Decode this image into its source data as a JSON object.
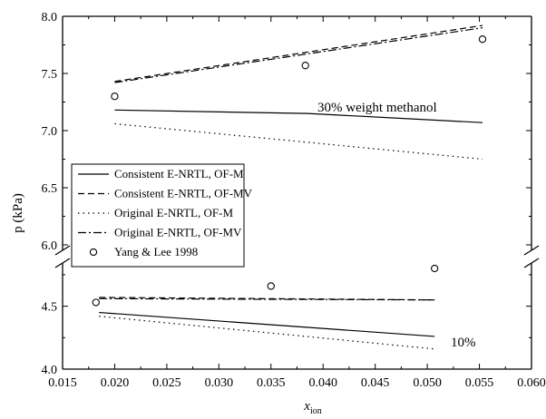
{
  "chart_data": {
    "type": "line",
    "xlabel": "x",
    "xlabel_sub": "ion",
    "ylabel": "p (kPa)",
    "xlim": [
      0.015,
      0.06
    ],
    "x_ticks": [
      "0.015",
      "0.020",
      "0.025",
      "0.030",
      "0.035",
      "0.040",
      "0.045",
      "0.050",
      "0.055",
      "0.060"
    ],
    "y_axis_break": true,
    "upper_panel": {
      "ylim": [
        6.0,
        8.0
      ],
      "y_ticks": [
        "6.0",
        "6.5",
        "7.0",
        "7.5",
        "8.0"
      ]
    },
    "lower_panel": {
      "ylim": [
        4.0,
        4.8
      ],
      "y_ticks": [
        "4.0",
        "4.5"
      ]
    },
    "annotations": [
      {
        "id": "annot-30",
        "text": "30% weight methanol"
      },
      {
        "id": "annot-10",
        "text": "10%"
      }
    ],
    "legend": {
      "position": "lower-left"
    },
    "series": [
      {
        "name": "Consistent E-NRTL, OF-M",
        "style": "solid",
        "segments": [
          {
            "panel": "upper",
            "x": [
              0.02,
              0.0385,
              0.0553
            ],
            "y": [
              7.18,
              7.15,
              7.07
            ]
          },
          {
            "panel": "lower",
            "x": [
              0.0185,
              0.0507
            ],
            "y": [
              4.45,
              4.26
            ]
          }
        ]
      },
      {
        "name": "Consistent E-NRTL, OF-MV",
        "style": "dashed",
        "segments": [
          {
            "panel": "upper",
            "x": [
              0.02,
              0.0553
            ],
            "y": [
              7.43,
              7.92
            ]
          },
          {
            "panel": "lower",
            "x": [
              0.0185,
              0.0507
            ],
            "y": [
              4.57,
              4.55
            ]
          }
        ]
      },
      {
        "name": "Original E-NRTL, OF-M",
        "style": "dotted",
        "segments": [
          {
            "panel": "upper",
            "x": [
              0.02,
              0.0553
            ],
            "y": [
              7.06,
              6.75
            ]
          },
          {
            "panel": "lower",
            "x": [
              0.0185,
              0.0507
            ],
            "y": [
              4.42,
              4.16
            ]
          }
        ]
      },
      {
        "name": "Original E-NRTL, OF-MV",
        "style": "dashdot",
        "segments": [
          {
            "panel": "upper",
            "x": [
              0.02,
              0.0553
            ],
            "y": [
              7.42,
              7.9
            ]
          },
          {
            "panel": "lower",
            "x": [
              0.0185,
              0.0507
            ],
            "y": [
              4.56,
              4.55
            ]
          }
        ]
      },
      {
        "name": "Yang & Lee 1998",
        "style": "marker",
        "points": [
          {
            "panel": "upper",
            "x": 0.02,
            "y": 7.3
          },
          {
            "panel": "upper",
            "x": 0.0383,
            "y": 7.57
          },
          {
            "panel": "upper",
            "x": 0.0553,
            "y": 7.8
          },
          {
            "panel": "lower",
            "x": 0.0182,
            "y": 4.53
          },
          {
            "panel": "lower",
            "x": 0.035,
            "y": 4.66
          },
          {
            "panel": "lower",
            "x": 0.0507,
            "y": 4.8
          }
        ]
      }
    ]
  }
}
